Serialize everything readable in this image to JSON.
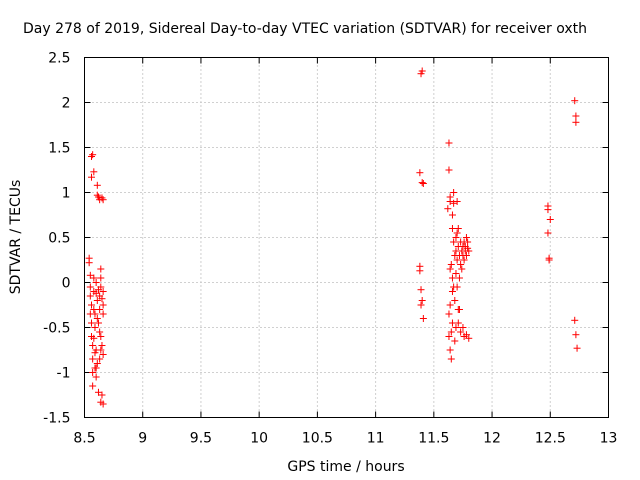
{
  "chart_data": {
    "type": "scatter",
    "title": "Day 278 of 2019, Sidereal Day-to-day VTEC variation (SDTVAR) for receiver oxth",
    "xlabel": "GPS time / hours",
    "ylabel": "SDTVAR / TECUs",
    "xlim": [
      8.5,
      13
    ],
    "ylim": [
      -1.5,
      2.5
    ],
    "xticks": [
      "8.5",
      "9",
      "9.5",
      "10",
      "10.5",
      "11",
      "11.5",
      "12",
      "12.5",
      "13"
    ],
    "yticks": [
      "-1.5",
      "-1",
      "-0.5",
      "0",
      "0.5",
      "1",
      "1.5",
      "2",
      "2.5"
    ],
    "grid": true,
    "marker": "+",
    "color": "#ff0000",
    "series": [
      {
        "name": "SDTVAR",
        "points": [
          [
            8.54,
            0.27
          ],
          [
            8.54,
            0.22
          ],
          [
            8.55,
            0.08
          ],
          [
            8.55,
            -0.05
          ],
          [
            8.55,
            -0.15
          ],
          [
            8.56,
            -0.25
          ],
          [
            8.56,
            -0.45
          ],
          [
            8.56,
            -0.6
          ],
          [
            8.57,
            -0.85
          ],
          [
            8.57,
            -1.0
          ],
          [
            8.57,
            -1.15
          ],
          [
            8.56,
            1.17
          ],
          [
            8.56,
            1.4
          ],
          [
            8.57,
            1.42
          ],
          [
            8.58,
            1.23
          ],
          [
            8.58,
            0.05
          ],
          [
            8.58,
            -0.1
          ],
          [
            8.58,
            -0.3
          ],
          [
            8.59,
            -0.35
          ],
          [
            8.59,
            -0.5
          ],
          [
            8.59,
            -0.78
          ],
          [
            8.59,
            -0.95
          ],
          [
            8.6,
            -1.05
          ],
          [
            8.6,
            0.0
          ],
          [
            8.6,
            -0.12
          ],
          [
            8.61,
            1.08
          ],
          [
            8.61,
            0.97
          ],
          [
            8.61,
            -0.2
          ],
          [
            8.61,
            -0.4
          ],
          [
            8.61,
            -0.9
          ],
          [
            8.62,
            -1.22
          ],
          [
            8.62,
            0.95
          ],
          [
            8.63,
            0.92
          ],
          [
            8.62,
            -0.08
          ],
          [
            8.63,
            -0.15
          ],
          [
            8.63,
            -0.3
          ],
          [
            8.63,
            -0.55
          ],
          [
            8.63,
            -0.85
          ],
          [
            8.64,
            0.15
          ],
          [
            8.64,
            0.05
          ],
          [
            8.64,
            -0.05
          ],
          [
            8.64,
            -0.6
          ],
          [
            8.64,
            -0.75
          ],
          [
            8.64,
            -1.33
          ],
          [
            8.65,
            0.94
          ],
          [
            8.65,
            -0.18
          ],
          [
            8.65,
            -0.7
          ],
          [
            8.65,
            -1.25
          ],
          [
            8.66,
            0.92
          ],
          [
            8.66,
            -0.1
          ],
          [
            8.66,
            -0.25
          ],
          [
            8.66,
            -0.35
          ],
          [
            8.66,
            -0.8
          ],
          [
            8.66,
            -1.35
          ],
          [
            8.57,
            -0.7
          ],
          [
            8.58,
            -0.62
          ],
          [
            8.6,
            -0.95
          ],
          [
            8.62,
            -0.45
          ],
          [
            8.55,
            -0.35
          ],
          [
            8.6,
            -0.75
          ],
          [
            11.38,
            1.22
          ],
          [
            11.38,
            0.18
          ],
          [
            11.38,
            0.13
          ],
          [
            11.39,
            -0.08
          ],
          [
            11.39,
            -0.25
          ],
          [
            11.39,
            2.32
          ],
          [
            11.4,
            2.35
          ],
          [
            11.4,
            1.11
          ],
          [
            11.41,
            1.1
          ],
          [
            11.4,
            -0.2
          ],
          [
            11.41,
            -0.4
          ],
          [
            11.62,
            0.82
          ],
          [
            11.63,
            1.25
          ],
          [
            11.63,
            1.55
          ],
          [
            11.63,
            -0.35
          ],
          [
            11.63,
            -0.6
          ],
          [
            11.64,
            0.95
          ],
          [
            11.64,
            0.9
          ],
          [
            11.64,
            0.15
          ],
          [
            11.64,
            -0.25
          ],
          [
            11.64,
            -0.75
          ],
          [
            11.65,
            0.2
          ],
          [
            11.65,
            -0.55
          ],
          [
            11.65,
            -0.85
          ],
          [
            11.66,
            0.75
          ],
          [
            11.66,
            0.6
          ],
          [
            11.66,
            0.05
          ],
          [
            11.66,
            -0.1
          ],
          [
            11.66,
            -0.45
          ],
          [
            11.67,
            1.0
          ],
          [
            11.67,
            0.88
          ],
          [
            11.67,
            0.45
          ],
          [
            11.67,
            -0.05
          ],
          [
            11.68,
            0.3
          ],
          [
            11.68,
            -0.2
          ],
          [
            11.68,
            -0.65
          ],
          [
            11.69,
            0.5
          ],
          [
            11.69,
            0.35
          ],
          [
            11.69,
            0.1
          ],
          [
            11.69,
            -0.5
          ],
          [
            11.7,
            0.9
          ],
          [
            11.7,
            0.55
          ],
          [
            11.7,
            0.25
          ],
          [
            11.7,
            -0.05
          ],
          [
            11.71,
            0.6
          ],
          [
            11.71,
            0.4
          ],
          [
            11.71,
            -0.3
          ],
          [
            11.71,
            -0.45
          ],
          [
            11.72,
            0.3
          ],
          [
            11.72,
            0.05
          ],
          [
            11.72,
            -0.3
          ],
          [
            11.73,
            0.45
          ],
          [
            11.73,
            0.2
          ],
          [
            11.73,
            -0.55
          ],
          [
            11.74,
            0.35
          ],
          [
            11.74,
            0.15
          ],
          [
            11.75,
            0.4
          ],
          [
            11.75,
            0.3
          ],
          [
            11.75,
            -0.5
          ],
          [
            11.76,
            0.45
          ],
          [
            11.76,
            0.25
          ],
          [
            11.76,
            -0.6
          ],
          [
            11.77,
            0.4
          ],
          [
            11.77,
            0.35
          ],
          [
            11.78,
            0.5
          ],
          [
            11.78,
            0.3
          ],
          [
            11.78,
            -0.58
          ],
          [
            11.79,
            0.45
          ],
          [
            11.79,
            0.38
          ],
          [
            11.8,
            0.35
          ],
          [
            11.8,
            -0.62
          ],
          [
            12.48,
            0.85
          ],
          [
            12.48,
            0.81
          ],
          [
            12.48,
            0.55
          ],
          [
            12.49,
            0.27
          ],
          [
            12.49,
            0.25
          ],
          [
            12.5,
            0.7
          ],
          [
            12.71,
            2.02
          ],
          [
            12.71,
            -0.42
          ],
          [
            12.72,
            1.85
          ],
          [
            12.72,
            1.78
          ],
          [
            12.72,
            -0.58
          ],
          [
            12.73,
            -0.73
          ]
        ]
      }
    ]
  }
}
